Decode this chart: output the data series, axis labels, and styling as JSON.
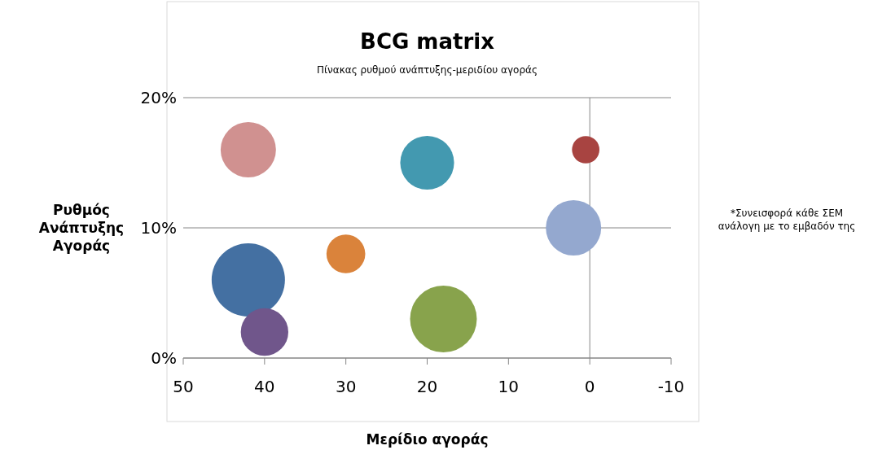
{
  "chart_data": {
    "type": "bubble",
    "title": "BCG matrix",
    "subtitle": "Πίνακας ρυθμού ανάπτυξης-μεριδίου αγοράς",
    "xlabel": "Μερίδιο αγοράς",
    "ylabel": "Ρυθμός Ανάπτυξης Αγοράς",
    "annotations": [
      "*Συνεισφορά κάθε ΣΕΜ ανάλογη με το εμβαδόν της"
    ],
    "x": [
      42,
      20,
      0.5,
      2,
      30,
      42,
      40,
      18
    ],
    "values": [
      16,
      15,
      16,
      10,
      8,
      6,
      2,
      3
    ],
    "sizes": [
      0.57,
      0.54,
      0.14,
      0.57,
      0.28,
      1,
      0.42,
      0.83
    ],
    "colors": [
      "#d09190",
      "#4399b0",
      "#a84441",
      "#94a8cf",
      "#da833b",
      "#4470a2",
      "#70568b",
      "#88a34c"
    ],
    "xlim": [
      50,
      -10
    ],
    "xticks": [
      50,
      40,
      30,
      20,
      10,
      0,
      -10
    ],
    "ylim": [
      0,
      20
    ],
    "yticks": [
      {
        "value": 0,
        "label": "0%"
      },
      {
        "value": 10,
        "label": "10%"
      },
      {
        "value": 20,
        "label": "20%"
      }
    ],
    "grid": "y",
    "ref_lines": [
      {
        "axis": "x",
        "value": 0,
        "color": "#868686"
      }
    ]
  }
}
